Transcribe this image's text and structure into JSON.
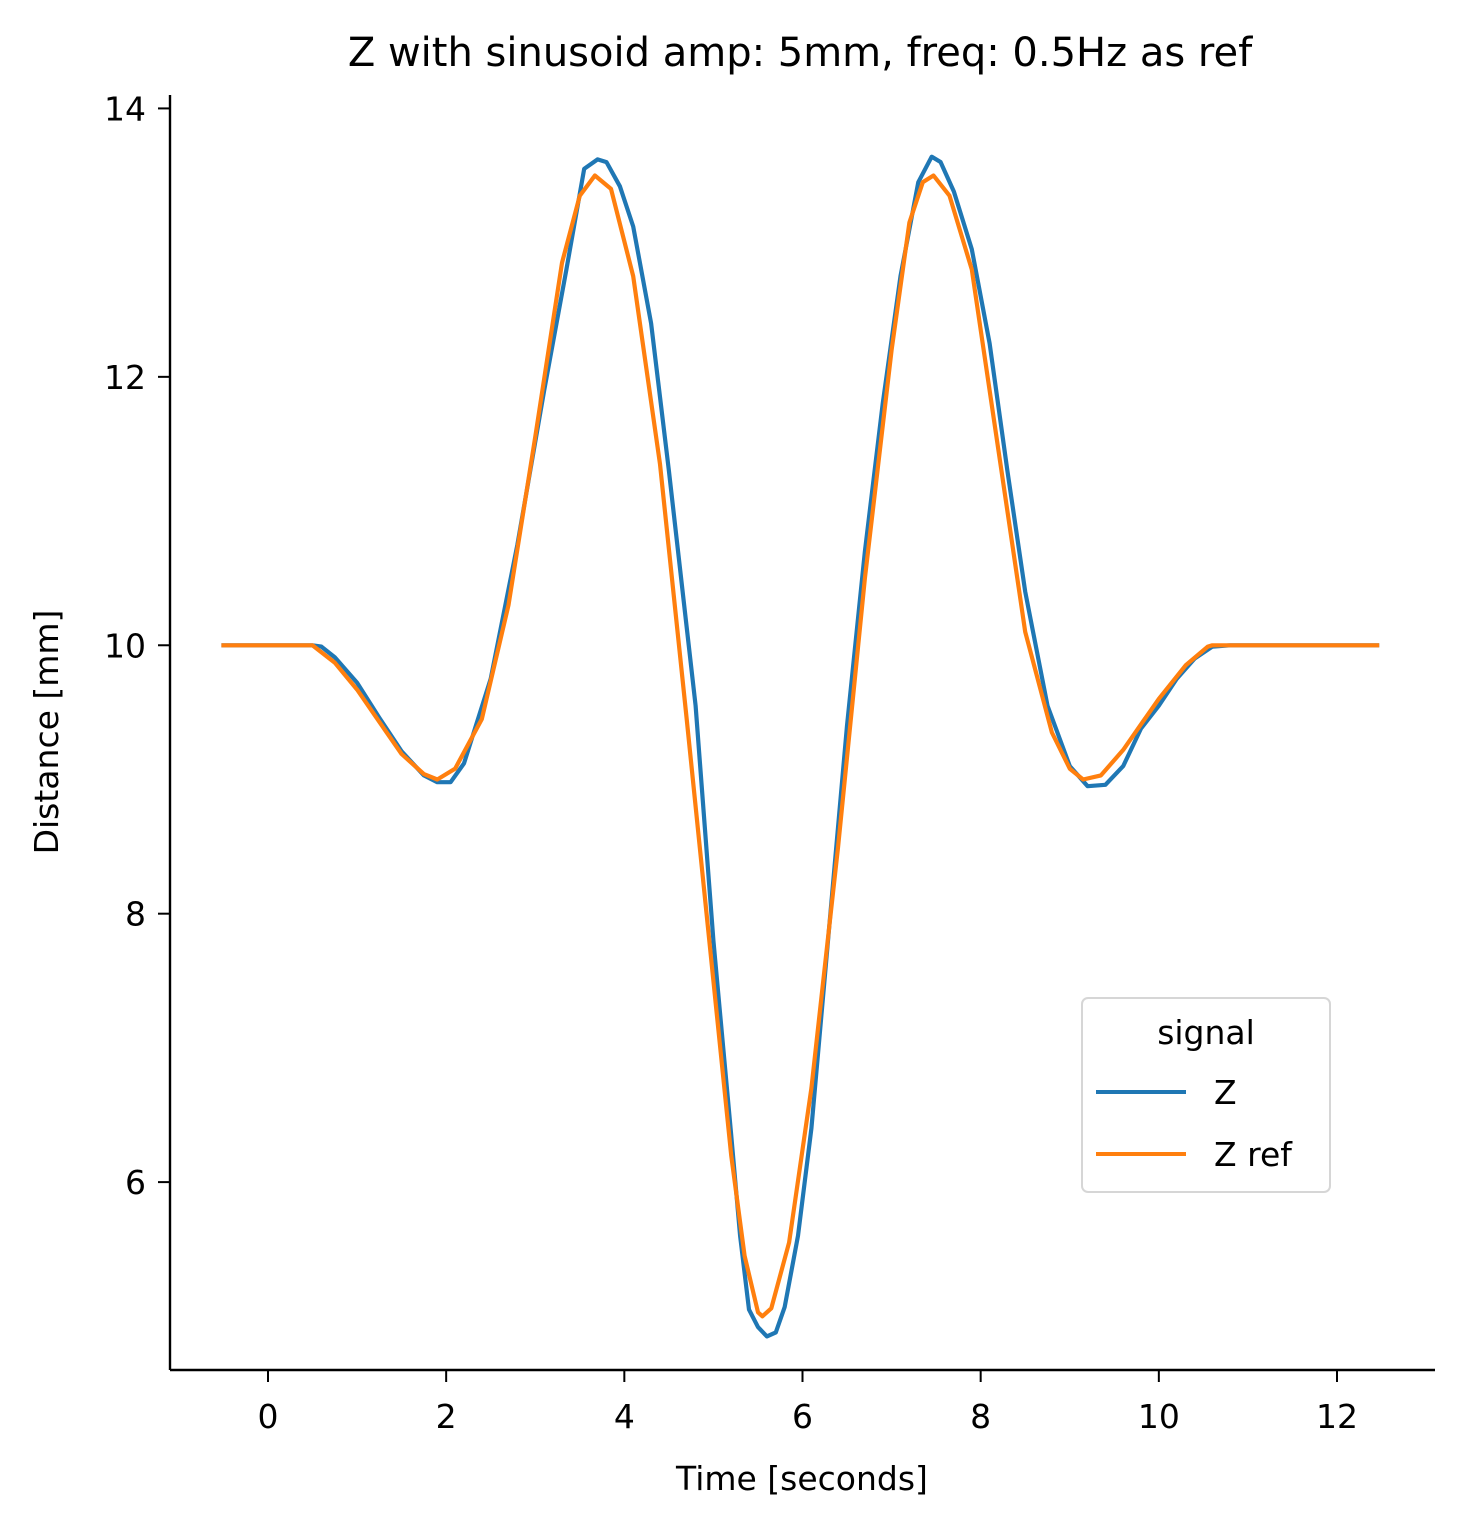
{
  "chart_data": {
    "type": "line",
    "title": "Z with sinusoid amp: 5mm, freq: 0.5Hz as ref",
    "xlabel": "Time [seconds]",
    "ylabel": "Distance [mm]",
    "xlim": [
      -1.1,
      13.1
    ],
    "ylim": [
      4.6,
      14.1
    ],
    "xticks": [
      0,
      2,
      4,
      6,
      8,
      10,
      12
    ],
    "yticks": [
      6,
      8,
      10,
      12,
      14
    ],
    "xtick_labels": [
      "0",
      "2",
      "4",
      "6",
      "8",
      "10",
      "12"
    ],
    "ytick_labels": [
      "6",
      "8",
      "10",
      "12",
      "14"
    ],
    "grid": false,
    "legend": {
      "title": "signal",
      "placement": "lower-right"
    },
    "series": [
      {
        "name": "Z",
        "color": "#1f77b4",
        "points": [
          [
            -0.5,
            10.0
          ],
          [
            0.0,
            10.0
          ],
          [
            0.5,
            10.0
          ],
          [
            0.6,
            9.99
          ],
          [
            0.75,
            9.91
          ],
          [
            1.0,
            9.72
          ],
          [
            1.25,
            9.46
          ],
          [
            1.5,
            9.21
          ],
          [
            1.75,
            9.03
          ],
          [
            1.9,
            8.98
          ],
          [
            2.05,
            8.98
          ],
          [
            2.2,
            9.12
          ],
          [
            2.5,
            9.75
          ],
          [
            2.8,
            10.75
          ],
          [
            3.1,
            11.9
          ],
          [
            3.35,
            12.8
          ],
          [
            3.55,
            13.55
          ],
          [
            3.7,
            13.62
          ],
          [
            3.8,
            13.6
          ],
          [
            3.95,
            13.42
          ],
          [
            4.1,
            13.12
          ],
          [
            4.3,
            12.4
          ],
          [
            4.5,
            11.3
          ],
          [
            4.8,
            9.55
          ],
          [
            5.0,
            7.8
          ],
          [
            5.2,
            6.35
          ],
          [
            5.3,
            5.6
          ],
          [
            5.4,
            5.05
          ],
          [
            5.5,
            4.92
          ],
          [
            5.6,
            4.85
          ],
          [
            5.7,
            4.88
          ],
          [
            5.8,
            5.07
          ],
          [
            5.95,
            5.6
          ],
          [
            6.1,
            6.4
          ],
          [
            6.3,
            7.9
          ],
          [
            6.5,
            9.4
          ],
          [
            6.7,
            10.7
          ],
          [
            6.9,
            11.8
          ],
          [
            7.1,
            12.75
          ],
          [
            7.3,
            13.45
          ],
          [
            7.45,
            13.64
          ],
          [
            7.55,
            13.6
          ],
          [
            7.7,
            13.38
          ],
          [
            7.9,
            12.95
          ],
          [
            8.1,
            12.25
          ],
          [
            8.3,
            11.3
          ],
          [
            8.5,
            10.4
          ],
          [
            8.75,
            9.55
          ],
          [
            9.0,
            9.1
          ],
          [
            9.2,
            8.95
          ],
          [
            9.4,
            8.96
          ],
          [
            9.6,
            9.1
          ],
          [
            9.8,
            9.38
          ],
          [
            10.0,
            9.55
          ],
          [
            10.2,
            9.75
          ],
          [
            10.4,
            9.9
          ],
          [
            10.6,
            9.99
          ],
          [
            10.8,
            10.0
          ],
          [
            11.3,
            10.0
          ],
          [
            11.5,
            10.0
          ],
          [
            12.45,
            10.0
          ]
        ]
      },
      {
        "name": "Z ref",
        "color": "#ff7f0e",
        "points": [
          [
            -0.5,
            10.0
          ],
          [
            0.0,
            10.0
          ],
          [
            0.5,
            10.0
          ],
          [
            0.75,
            9.87
          ],
          [
            1.0,
            9.67
          ],
          [
            1.25,
            9.43
          ],
          [
            1.5,
            9.19
          ],
          [
            1.75,
            9.04
          ],
          [
            1.9,
            9.0
          ],
          [
            2.1,
            9.08
          ],
          [
            2.4,
            9.45
          ],
          [
            2.7,
            10.3
          ],
          [
            3.0,
            11.55
          ],
          [
            3.3,
            12.85
          ],
          [
            3.5,
            13.35
          ],
          [
            3.67,
            13.5
          ],
          [
            3.85,
            13.4
          ],
          [
            4.1,
            12.75
          ],
          [
            4.4,
            11.35
          ],
          [
            4.7,
            9.45
          ],
          [
            5.0,
            7.5
          ],
          [
            5.2,
            6.2
          ],
          [
            5.35,
            5.45
          ],
          [
            5.5,
            5.03
          ],
          [
            5.55,
            5.0
          ],
          [
            5.65,
            5.06
          ],
          [
            5.85,
            5.55
          ],
          [
            6.1,
            6.7
          ],
          [
            6.4,
            8.5
          ],
          [
            6.7,
            10.5
          ],
          [
            7.0,
            12.2
          ],
          [
            7.2,
            13.15
          ],
          [
            7.35,
            13.45
          ],
          [
            7.47,
            13.5
          ],
          [
            7.65,
            13.35
          ],
          [
            7.9,
            12.8
          ],
          [
            8.2,
            11.45
          ],
          [
            8.5,
            10.1
          ],
          [
            8.8,
            9.35
          ],
          [
            9.0,
            9.08
          ],
          [
            9.15,
            9.0
          ],
          [
            9.35,
            9.03
          ],
          [
            9.6,
            9.22
          ],
          [
            10.0,
            9.6
          ],
          [
            10.3,
            9.85
          ],
          [
            10.55,
            9.99
          ],
          [
            10.6,
            10.0
          ],
          [
            11.5,
            10.0
          ],
          [
            12.45,
            10.0
          ]
        ]
      }
    ]
  }
}
